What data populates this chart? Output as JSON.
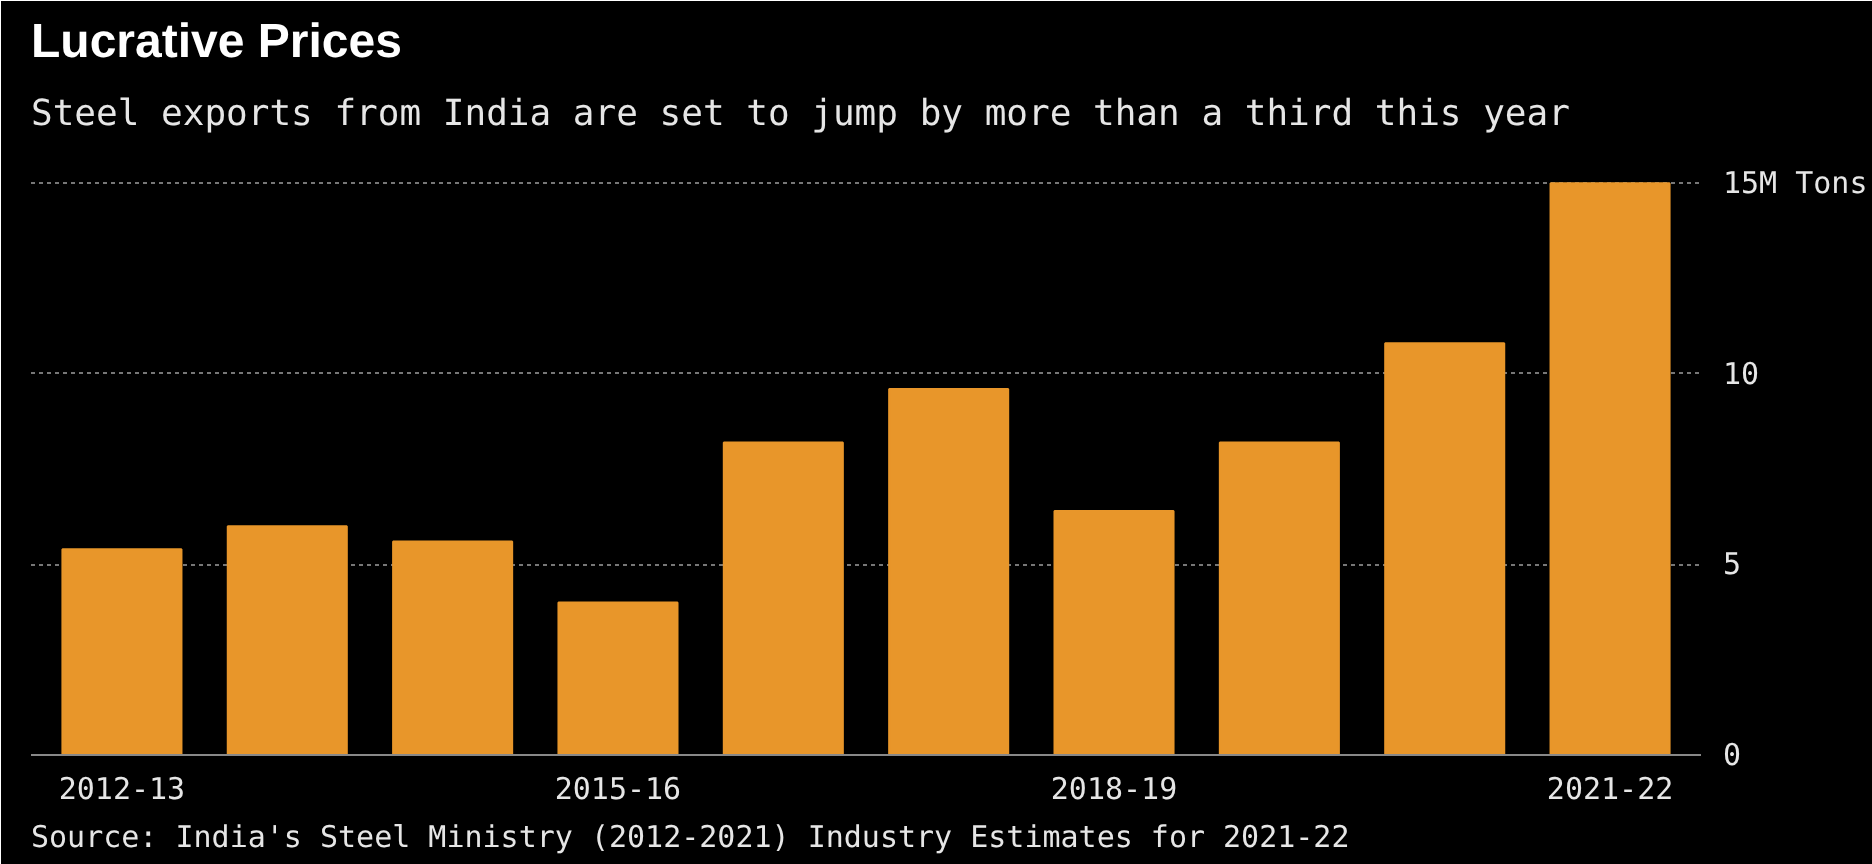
{
  "chart_data": {
    "type": "bar",
    "title": "Lucrative Prices",
    "subtitle": "Steel exports from India are set to jump by more than a third this year",
    "categories": [
      "2012-13",
      null,
      null,
      "2015-16",
      null,
      null,
      "2018-19",
      null,
      null,
      "2021-22"
    ],
    "values": [
      5.4,
      6.0,
      5.6,
      4.0,
      8.2,
      9.6,
      6.4,
      8.2,
      10.8,
      15.0
    ],
    "color": "#e8962a",
    "ylim": [
      0,
      16
    ],
    "yticks": [
      0,
      5,
      10,
      {
        "value": 15,
        "label": "15M Tons"
      }
    ],
    "grid": "y",
    "annotations": [
      "Source: India's Steel Ministry (2012-2021) Industry Estimates for 2021-22"
    ]
  }
}
